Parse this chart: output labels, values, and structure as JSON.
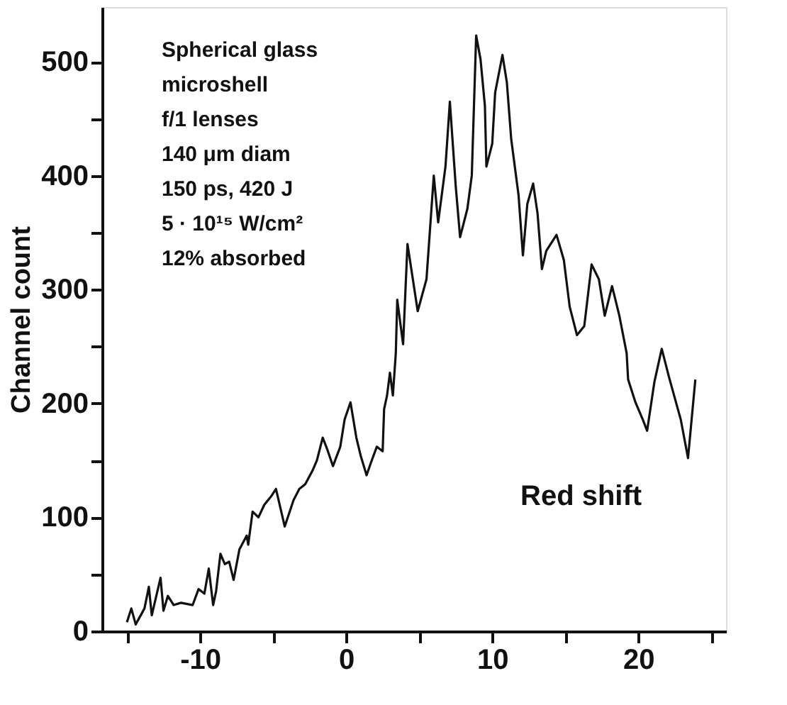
{
  "chart_data": {
    "type": "line",
    "ylabel": "Channel count",
    "line_style": "solid",
    "marker": "none",
    "grid": false,
    "annotations": [
      "Spherical glass",
      "microshell",
      "f/1 lenses",
      "140 μm diam",
      "150 ps, 420 J",
      "5 · 10¹⁵ W/cm²",
      "12% absorbed",
      "Red shift"
    ],
    "xlim": [
      -16.7,
      26
    ],
    "ylim": [
      0,
      548
    ],
    "xticks": [
      {
        "value": -15,
        "label": null
      },
      -10,
      {
        "value": -5,
        "label": null
      },
      0,
      {
        "value": 5,
        "label": null
      },
      10,
      {
        "value": 15,
        "label": null
      },
      20,
      {
        "value": 25,
        "label": null
      }
    ],
    "yticks": [
      0,
      {
        "value": 50,
        "label": null
      },
      100,
      {
        "value": 150,
        "label": null
      },
      200,
      {
        "value": 250,
        "label": null
      },
      300,
      {
        "value": 350,
        "label": null
      },
      400,
      {
        "value": 450,
        "label": null
      },
      500
    ],
    "series": [
      {
        "color": "#111111",
        "x": [
          -15.0,
          -14.7,
          -14.4,
          -13.8,
          -13.5,
          -13.3,
          -12.7,
          -12.5,
          -12.2,
          -11.8,
          -11.3,
          -10.5,
          -10.1,
          -9.7,
          -9.4,
          -9.1,
          -8.9,
          -8.6,
          -8.3,
          -8.0,
          -7.7,
          -7.3,
          -6.8,
          -6.7,
          -6.4,
          -6.0,
          -5.6,
          -5.1,
          -4.8,
          -4.2,
          -3.6,
          -3.2,
          -2.8,
          -2.3,
          -2.0,
          -1.6,
          -1.3,
          -0.9,
          -0.4,
          -0.1,
          0.3,
          0.7,
          1.0,
          1.4,
          1.7,
          2.1,
          2.5,
          2.6,
          2.8,
          3.0,
          3.2,
          3.4,
          3.5,
          3.9,
          4.2,
          4.9,
          5.5,
          6.0,
          6.3,
          6.8,
          7.1,
          7.5,
          7.8,
          8.3,
          8.6,
          8.9,
          9.2,
          9.5,
          9.6,
          10.0,
          10.2,
          10.7,
          11.0,
          11.3,
          11.8,
          12.1,
          12.4,
          12.8,
          13.1,
          13.4,
          13.7,
          14.4,
          14.9,
          15.3,
          15.8,
          16.3,
          16.8,
          17.3,
          17.7,
          18.2,
          18.7,
          19.2,
          19.3,
          19.8,
          20.3,
          20.6,
          21.1,
          21.6,
          22.1,
          22.9,
          23.4,
          23.9
        ],
        "values": [
          8,
          20,
          6,
          20,
          39,
          14,
          47,
          18,
          31,
          23,
          25,
          23,
          37,
          33,
          55,
          23,
          35,
          68,
          59,
          61,
          45,
          72,
          84,
          76,
          105,
          100,
          111,
          119,
          125,
          92,
          115,
          125,
          129,
          141,
          150,
          170,
          160,
          145,
          162,
          186,
          201,
          170,
          154,
          137,
          148,
          162,
          158,
          195,
          207,
          227,
          207,
          244,
          291,
          252,
          340,
          281,
          309,
          400,
          359,
          408,
          465,
          391,
          346,
          371,
          400,
          523,
          502,
          461,
          408,
          428,
          473,
          506,
          482,
          432,
          383,
          330,
          375,
          393,
          367,
          318,
          334,
          348,
          326,
          285,
          260,
          268,
          322,
          309,
          277,
          303,
          277,
          244,
          221,
          201,
          186,
          176,
          219,
          248,
          223,
          186,
          152,
          221
        ]
      }
    ]
  }
}
